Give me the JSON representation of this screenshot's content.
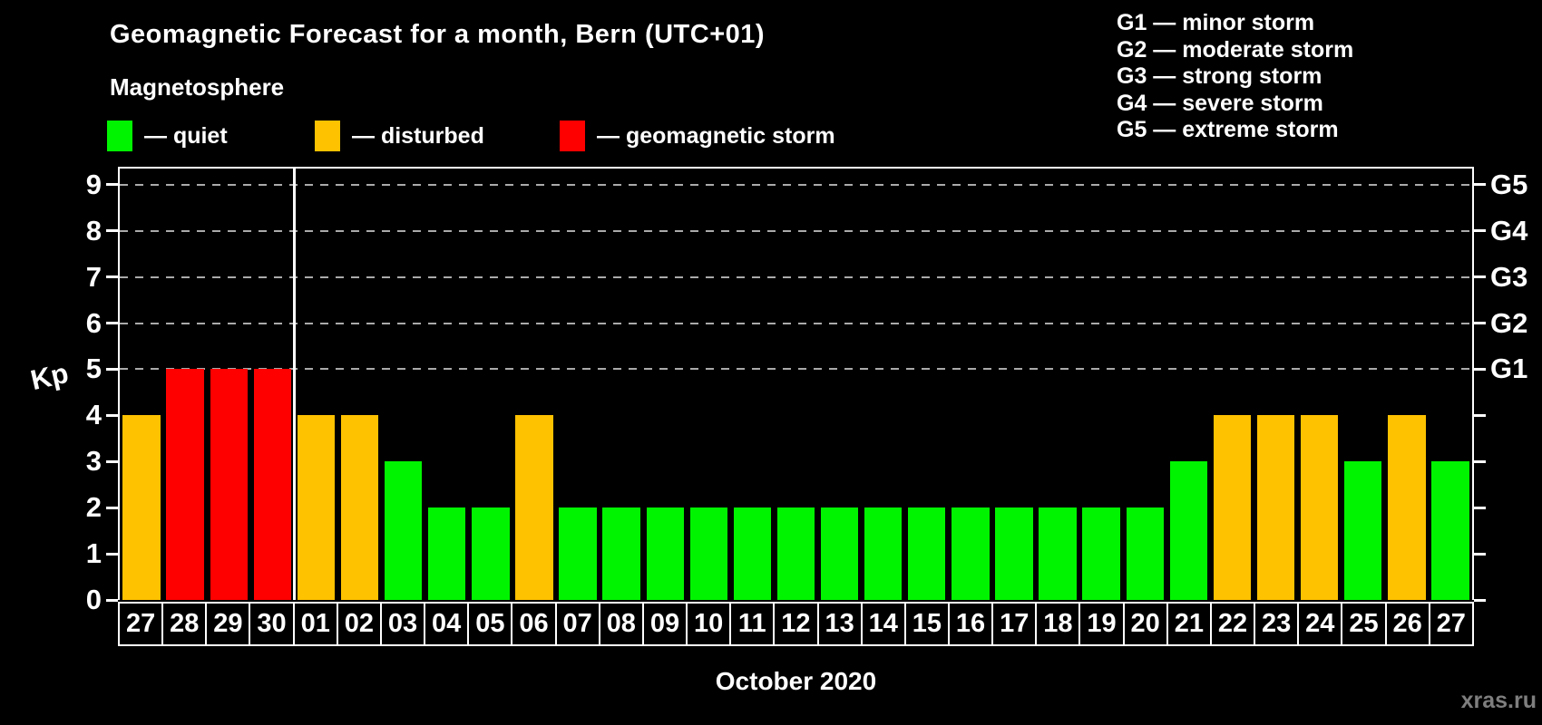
{
  "title": "Geomagnetic Forecast for a month, Bern (UTC+01)",
  "subtitle": "Magnetosphere",
  "legend": {
    "items": [
      {
        "status": "quiet",
        "label": "— quiet"
      },
      {
        "status": "disturbed",
        "label": "— disturbed"
      },
      {
        "status": "storm",
        "label": "— geomagnetic storm"
      }
    ]
  },
  "g_legend": [
    "G1 — minor storm",
    "G2 — moderate storm",
    "G3 — strong storm",
    "G4 — severe storm",
    "G5 — extreme storm"
  ],
  "axis": {
    "y_label": "Kp",
    "x_label": "October 2020",
    "left_ticks": [
      0,
      1,
      2,
      3,
      4,
      5,
      6,
      7,
      8,
      9
    ],
    "right_labels": [
      "G1",
      "G2",
      "G3",
      "G4",
      "G5"
    ]
  },
  "watermark": "xras.ru",
  "colors": {
    "quiet": "#00f400",
    "disturbed": "#ffc200",
    "storm": "#ff0000",
    "axis": "#ffffff",
    "grid": "#aaaaaa",
    "background": "#000000",
    "watermark": "#7e7e7e"
  },
  "chart_data": {
    "type": "bar",
    "title": "Geomagnetic Forecast for a month, Bern (UTC+01)",
    "ylabel": "Kp",
    "xlabel": "October 2020",
    "ylim": [
      0,
      9.35
    ],
    "gridlines_at": [
      5,
      6,
      7,
      8,
      9
    ],
    "g_scale_map": {
      "5": "G1",
      "6": "G2",
      "7": "G3",
      "8": "G4",
      "9": "G5"
    },
    "month_separator_after_index": 3,
    "days": [
      {
        "label": "27",
        "kp": 4,
        "status": "disturbed"
      },
      {
        "label": "28",
        "kp": 5,
        "status": "storm"
      },
      {
        "label": "29",
        "kp": 5,
        "status": "storm"
      },
      {
        "label": "30",
        "kp": 5,
        "status": "storm"
      },
      {
        "label": "01",
        "kp": 4,
        "status": "disturbed"
      },
      {
        "label": "02",
        "kp": 4,
        "status": "disturbed"
      },
      {
        "label": "03",
        "kp": 3,
        "status": "quiet"
      },
      {
        "label": "04",
        "kp": 2,
        "status": "quiet"
      },
      {
        "label": "05",
        "kp": 2,
        "status": "quiet"
      },
      {
        "label": "06",
        "kp": 4,
        "status": "disturbed"
      },
      {
        "label": "07",
        "kp": 2,
        "status": "quiet"
      },
      {
        "label": "08",
        "kp": 2,
        "status": "quiet"
      },
      {
        "label": "09",
        "kp": 2,
        "status": "quiet"
      },
      {
        "label": "10",
        "kp": 2,
        "status": "quiet"
      },
      {
        "label": "11",
        "kp": 2,
        "status": "quiet"
      },
      {
        "label": "12",
        "kp": 2,
        "status": "quiet"
      },
      {
        "label": "13",
        "kp": 2,
        "status": "quiet"
      },
      {
        "label": "14",
        "kp": 2,
        "status": "quiet"
      },
      {
        "label": "15",
        "kp": 2,
        "status": "quiet"
      },
      {
        "label": "16",
        "kp": 2,
        "status": "quiet"
      },
      {
        "label": "17",
        "kp": 2,
        "status": "quiet"
      },
      {
        "label": "18",
        "kp": 2,
        "status": "quiet"
      },
      {
        "label": "19",
        "kp": 2,
        "status": "quiet"
      },
      {
        "label": "20",
        "kp": 2,
        "status": "quiet"
      },
      {
        "label": "21",
        "kp": 3,
        "status": "quiet"
      },
      {
        "label": "22",
        "kp": 4,
        "status": "disturbed"
      },
      {
        "label": "23",
        "kp": 4,
        "status": "disturbed"
      },
      {
        "label": "24",
        "kp": 4,
        "status": "disturbed"
      },
      {
        "label": "25",
        "kp": 3,
        "status": "quiet"
      },
      {
        "label": "26",
        "kp": 4,
        "status": "disturbed"
      },
      {
        "label": "27",
        "kp": 3,
        "status": "quiet"
      }
    ]
  }
}
